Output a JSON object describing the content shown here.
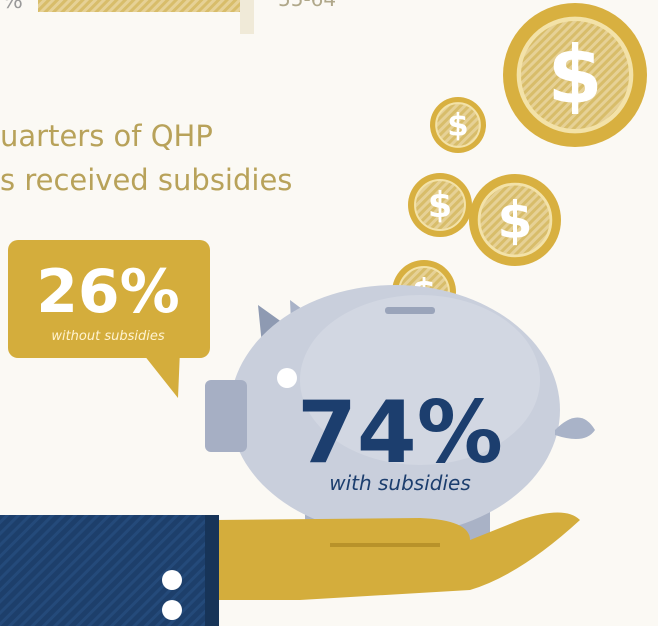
{
  "top_fragment": {
    "label": "%",
    "range": "55-64"
  },
  "heading": {
    "line1": "uarters of QHP",
    "line2": "s received subsidies"
  },
  "without": {
    "value": "26%",
    "caption": "without subsidies"
  },
  "with": {
    "value": "74%",
    "caption": "with subsidies"
  },
  "coin_symbol": "$"
}
